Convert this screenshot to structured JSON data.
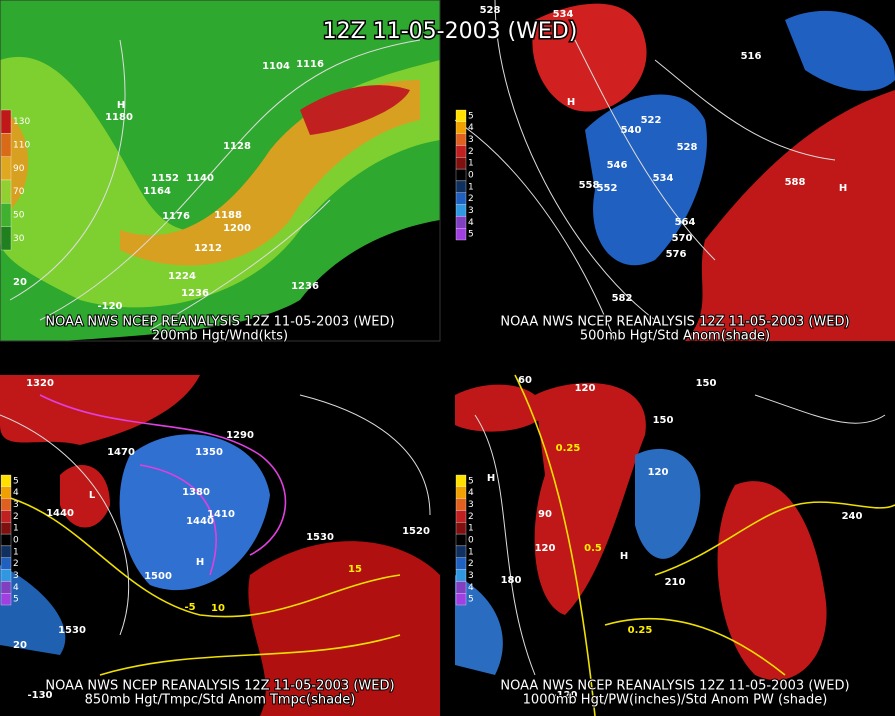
{
  "title": "12Z 11-05-2003 (WED)",
  "panels": [
    {
      "source": "NOAA NWS NCEP REANALYSIS 12Z 11-05-2003 (WED)",
      "product": "200mb Hgt/Wnd(kts)",
      "legend": [
        "130",
        "110",
        "90",
        "70",
        "50",
        "30"
      ],
      "labels": [
        "1104",
        "1116",
        "1128",
        "1140",
        "1152",
        "1164",
        "1176",
        "1188",
        "1200",
        "1212",
        "1224",
        "1236",
        "1236",
        "H",
        "1180",
        "-120",
        "20"
      ]
    },
    {
      "source": "NOAA NWS NCEP REANALYSIS 12Z 11-05-2003 (WED)",
      "product": "500mb Hgt/Std Anom(shade)",
      "legend": [
        "5",
        "4",
        "3",
        "2",
        "1",
        "0",
        "1",
        "2",
        "3",
        "4",
        "5"
      ],
      "labels": [
        "528",
        "534",
        "516",
        "540",
        "522",
        "528",
        "546",
        "534",
        "552",
        "558",
        "564",
        "570",
        "576",
        "582",
        "588",
        "H",
        "H"
      ]
    },
    {
      "source": "NOAA NWS NCEP REANALYSIS 12Z 11-05-2003 (WED)",
      "product": "850mb Hgt/Tmpc/Std Anom Tmpc(shade)",
      "legend": [
        "5",
        "4",
        "3",
        "2",
        "1",
        "0",
        "1",
        "2",
        "3",
        "4",
        "5"
      ],
      "labels": [
        "1470",
        "1350",
        "1380",
        "1410",
        "1440",
        "1500",
        "1530",
        "1530",
        "1520",
        "1440",
        "L",
        "H",
        "1290",
        "1320",
        "-5",
        "10",
        "15",
        "-130",
        "20"
      ]
    },
    {
      "source": "NOAA NWS NCEP REANALYSIS 12Z 11-05-2003 (WED)",
      "product": "1000mb Hgt/PW(inches)/Std Anom PW (shade)",
      "legend": [
        "5",
        "4",
        "3",
        "2",
        "1",
        "0",
        "1",
        "2",
        "3",
        "4",
        "5"
      ],
      "labels": [
        "120",
        "150",
        "150",
        "120",
        "90",
        "120",
        "180",
        "210",
        "240",
        "0.25",
        "0.5",
        "0.25",
        "H",
        "H",
        "60",
        "-120"
      ]
    }
  ]
}
